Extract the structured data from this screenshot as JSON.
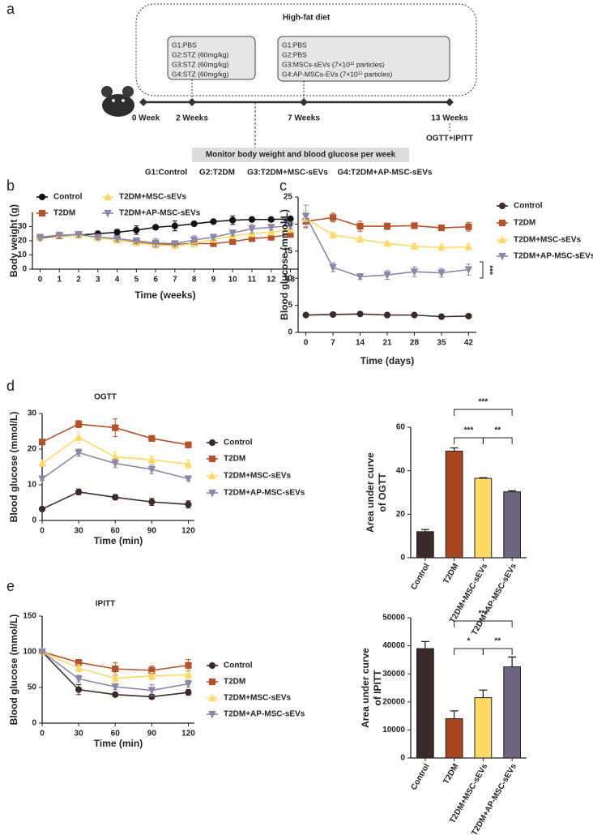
{
  "panels": [
    "a",
    "b",
    "c",
    "d",
    "e"
  ],
  "diagram": {
    "diet": "High-fat diet",
    "box1": [
      "G1:PBS",
      "G2:STZ (60mg/kg)",
      "G3:STZ (60mg/kg)",
      "G4:STZ (60mg/kg)"
    ],
    "box2": [
      "G1:PBS",
      "G2:PBS",
      "G3:MSCs-sEVs (7×10¹¹ particles)",
      "G4:AP-MSCs-EVs (7×10¹¹ particles)"
    ],
    "timeline": [
      "0 Week",
      "2 Weeks",
      "7 Weeks",
      "13 Weeks"
    ],
    "test": "OGTT+IPITT",
    "monitor": "Monitor body weight and blood glucose per week",
    "groups": [
      "G1:Control",
      "G2:T2DM",
      "G3:T2DM+MSC-sEVs",
      "G4:T2DM+AP-MSC-sEVs"
    ]
  },
  "chart_data": [
    {
      "type": "line",
      "xlabel": "Time (weeks)",
      "ylabel": "Body weight (g)",
      "x": [
        0,
        1,
        2,
        3,
        4,
        5,
        6,
        7,
        8,
        9,
        10,
        11,
        12,
        13
      ],
      "xlim": [
        -0.4,
        13.4
      ],
      "xticks": [
        0,
        1,
        2,
        3,
        4,
        5,
        6,
        7,
        8,
        9,
        10,
        11,
        12,
        13
      ],
      "ylim": [
        0,
        40
      ],
      "yticks": [
        0,
        10,
        20,
        30
      ],
      "series": [
        {
          "name": "Control",
          "color": "#111111",
          "marker": "circle",
          "values": [
            22,
            23.5,
            24,
            25,
            26,
            27.5,
            29.5,
            30.5,
            32,
            33.5,
            34.5,
            35,
            35,
            35.5
          ],
          "errors": [
            1,
            1,
            1,
            1.5,
            2,
            3,
            1.5,
            3.5,
            1.5,
            1,
            3,
            1.5,
            1.5,
            1.5
          ]
        },
        {
          "name": "T2DM",
          "color": "#b5522a",
          "marker": "square",
          "values": [
            22.5,
            23.5,
            24,
            22.5,
            20.5,
            19,
            17.5,
            17.5,
            18,
            18,
            19.5,
            21.5,
            22.5,
            24.5
          ],
          "errors": [
            1.5,
            1.5,
            1,
            1,
            1.5,
            1.5,
            1.5,
            1.5,
            2,
            2,
            1.5,
            1.5,
            1.5,
            2
          ]
        },
        {
          "name": "T2DM+MSC-sEVs",
          "color": "#ffd966",
          "marker": "triangle",
          "values": [
            22.5,
            24,
            24,
            22,
            20.5,
            18.5,
            17,
            16.5,
            18,
            21,
            23.5,
            25,
            26,
            28
          ],
          "errors": [
            1.5,
            1.5,
            2,
            1,
            1.5,
            2,
            2,
            1.5,
            2,
            2,
            2,
            2,
            2,
            2
          ]
        },
        {
          "name": "T2DM+AP-MSC-sEVs",
          "color": "#8a88a8",
          "marker": "triangle-down",
          "values": [
            22.5,
            24,
            24.5,
            22.5,
            21.5,
            20,
            18.5,
            18,
            20.5,
            22.5,
            25.5,
            28.5,
            29.5,
            30.5
          ],
          "errors": [
            1.5,
            2,
            2,
            1.5,
            2,
            2,
            3,
            1.5,
            3,
            2,
            2,
            3,
            2,
            2
          ]
        }
      ]
    },
    {
      "type": "line",
      "xlabel": "Time (days)",
      "ylabel": "Blood glucose (mmol/L)",
      "annotation": "***",
      "x": [
        0,
        7,
        14,
        21,
        28,
        35,
        42
      ],
      "xlim": [
        -2,
        44
      ],
      "xticks": [
        0,
        7,
        14,
        21,
        28,
        35,
        42
      ],
      "ylim": [
        0,
        25
      ],
      "yticks": [
        0,
        5,
        10,
        15,
        20,
        25
      ],
      "series": [
        {
          "name": "Control",
          "color": "#3b2a2a",
          "marker": "circle",
          "values": [
            3.2,
            3.3,
            3.4,
            3.2,
            3.2,
            2.9,
            3.0
          ],
          "errors": [
            0.3,
            0.3,
            0.3,
            0.3,
            0.3,
            0.3,
            0.3
          ]
        },
        {
          "name": "T2DM",
          "color": "#b5522a",
          "marker": "square",
          "values": [
            20.5,
            21.2,
            19.6,
            19.6,
            19.7,
            19.3,
            19.5
          ],
          "errors": [
            1.2,
            0.8,
            0.9,
            0.6,
            0.5,
            0.5,
            0.8
          ]
        },
        {
          "name": "T2DM+MSC-sEVs",
          "color": "#ffd966",
          "marker": "triangle",
          "values": [
            21,
            18,
            17.2,
            16.4,
            15.9,
            15.7,
            15.8
          ],
          "errors": [
            1.5,
            0.4,
            0.4,
            0.4,
            0.5,
            0.5,
            0.5
          ]
        },
        {
          "name": "T2DM+AP-MSC-sEVs",
          "color": "#8a88a8",
          "marker": "triangle-down",
          "values": [
            21.5,
            12,
            10.3,
            10.6,
            11.2,
            11,
            11.6
          ],
          "errors": [
            2,
            0.8,
            0.5,
            0.8,
            0.9,
            0.8,
            1
          ]
        }
      ]
    },
    {
      "type": "line",
      "title": "OGTT",
      "xlabel": "Time (min)",
      "ylabel": "Blood glucose (mmol/L)",
      "x": [
        0,
        30,
        60,
        90,
        120
      ],
      "xlim": [
        0,
        125
      ],
      "xticks": [
        0,
        30,
        60,
        90,
        120
      ],
      "ylim": [
        0,
        30
      ],
      "yticks": [
        0,
        10,
        20,
        30
      ],
      "series": [
        {
          "name": "Control",
          "color": "#3b2a2a",
          "marker": "circle",
          "values": [
            3.2,
            8,
            6.5,
            5.2,
            4.5
          ],
          "errors": [
            0.3,
            0.8,
            0.7,
            1,
            1
          ]
        },
        {
          "name": "T2DM",
          "color": "#b5522a",
          "marker": "square",
          "values": [
            22,
            27,
            26,
            23,
            21.2
          ],
          "errors": [
            0.5,
            1,
            2.5,
            0.5,
            0.8
          ]
        },
        {
          "name": "T2DM+MSC-sEVs",
          "color": "#ffd966",
          "marker": "triangle",
          "values": [
            16,
            23.3,
            17.8,
            17,
            15.8
          ],
          "errors": [
            0.5,
            1.5,
            1.5,
            1,
            1.2
          ]
        },
        {
          "name": "T2DM+AP-MSC-sEVs",
          "color": "#8a88a8",
          "marker": "triangle-down",
          "values": [
            11.7,
            19,
            16,
            14.3,
            11.7
          ],
          "errors": [
            0.5,
            1,
            1.2,
            1.2,
            0.5
          ]
        }
      ]
    },
    {
      "type": "bar",
      "ylabel": [
        "Area under curve",
        "of OGTT"
      ],
      "categories": [
        "Control",
        "T2DM",
        "T2DM+MSC-sEVs",
        "T2DM+AP-MSC-sEVs"
      ],
      "values": [
        12,
        49,
        36.5,
        30.3
      ],
      "errors": [
        1,
        1.5,
        0.3,
        0.5
      ],
      "colors": [
        "#3b2a2a",
        "#a8461f",
        "#ffd966",
        "#6e6680"
      ],
      "ylim": [
        0,
        60
      ],
      "yticks": [
        0,
        20,
        40,
        60
      ],
      "annotations": [
        "***",
        "***",
        "**"
      ]
    },
    {
      "type": "line",
      "title": "IPITT",
      "xlabel": "Time (min)",
      "ylabel": "Blood glucose (mmol/L)",
      "x": [
        0,
        30,
        60,
        90,
        120
      ],
      "xlim": [
        0,
        125
      ],
      "xticks": [
        0,
        30,
        60,
        90,
        120
      ],
      "ylim": [
        0,
        150
      ],
      "yticks": [
        0,
        50,
        100,
        150
      ],
      "series": [
        {
          "name": "Control",
          "color": "#3b2a2a",
          "marker": "circle",
          "values": [
            100,
            47,
            40,
            37,
            43
          ],
          "errors": [
            2,
            7,
            2,
            3,
            4
          ]
        },
        {
          "name": "T2DM",
          "color": "#b5522a",
          "marker": "square",
          "values": [
            100,
            85,
            76,
            74,
            81
          ],
          "errors": [
            2,
            4,
            9,
            6,
            8
          ]
        },
        {
          "name": "T2DM+MSC-sEVs",
          "color": "#ffd966",
          "marker": "triangle",
          "values": [
            100,
            77,
            63,
            66,
            68
          ],
          "errors": [
            2,
            5,
            6,
            5,
            6
          ]
        },
        {
          "name": "T2DM+AP-MSC-sEVs",
          "color": "#8a88a8",
          "marker": "triangle-down",
          "values": [
            100,
            62,
            51,
            46,
            55
          ],
          "errors": [
            2,
            5,
            4,
            8,
            5
          ]
        }
      ]
    },
    {
      "type": "bar",
      "ylabel": [
        "Area under curve",
        "of IPITT"
      ],
      "categories": [
        "Control",
        "T2DM",
        "T2DM+MSC-sEVs",
        "T2DM+AP-MSC-sEVs"
      ],
      "values": [
        39000,
        14000,
        21500,
        32500
      ],
      "errors": [
        2500,
        2800,
        2700,
        3500
      ],
      "colors": [
        "#3b2a2a",
        "#a8461f",
        "#ffd966",
        "#6e6680"
      ],
      "ylim": [
        0,
        50000
      ],
      "yticks": [
        0,
        10000,
        20000,
        30000,
        40000,
        50000
      ],
      "annotations": [
        "***",
        "*",
        "**"
      ]
    }
  ]
}
